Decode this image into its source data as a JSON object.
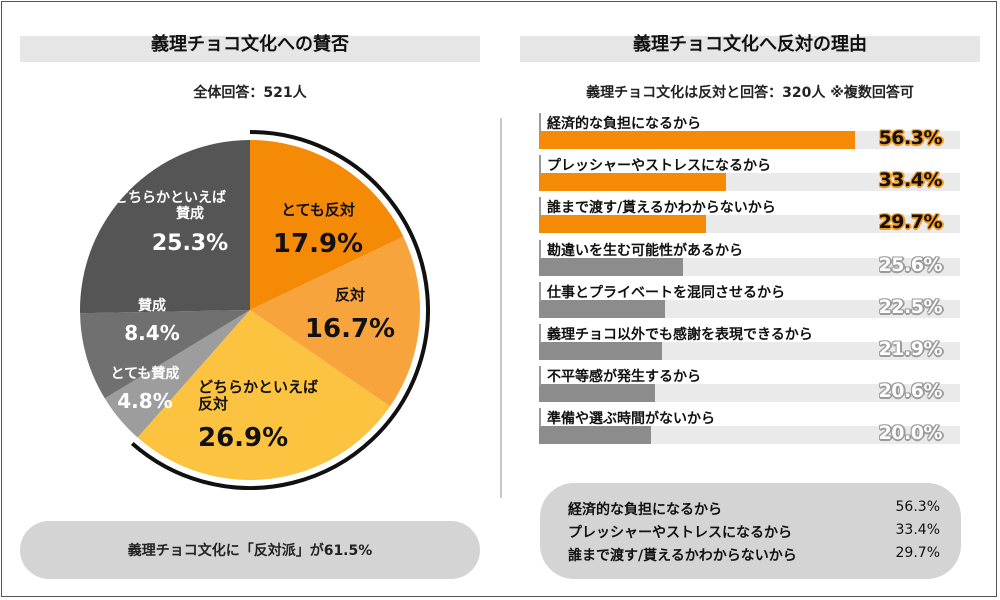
{
  "left_panel": {
    "title": "義理チョコ文化への賛否",
    "subtitle": "全体回答：521人",
    "summary": "義理チョコ文化に「反対派」が61.5%"
  },
  "right_panel": {
    "title": "義理チョコ文化へ反対の理由",
    "subtitle": "義理チョコ文化は反対と回答：320人 ※複数回答可",
    "summary": [
      {
        "label": "経済的な負担になるから",
        "value": "56.3%"
      },
      {
        "label": "プレッシャーやストレスになるから",
        "value": "33.4%"
      },
      {
        "label": "誰まで渡す/貰えるかわからないから",
        "value": "29.7%"
      }
    ]
  },
  "colors": {
    "orange_dark": "#f58a07",
    "orange_mid": "#f8a43c",
    "yellow": "#fbc33f",
    "gray_light": "#9d9d9d",
    "gray_mid": "#707070",
    "gray_dark": "#555555",
    "bar_gray": "#8c8c8c"
  },
  "chart_data": [
    {
      "type": "pie",
      "slices": [
        {
          "label_lines": [
            "とても反対"
          ],
          "pct_text": "17.9%",
          "value": 17.9,
          "color": "#f58a07"
        },
        {
          "label_lines": [
            "反対"
          ],
          "pct_text": "16.7%",
          "value": 16.7,
          "color": "#f8a43c"
        },
        {
          "label_lines": [
            "どちらかといえば",
            "反対"
          ],
          "pct_text": "26.9%",
          "value": 26.9,
          "color": "#fbc33f"
        },
        {
          "label_lines": [
            "とても賛成"
          ],
          "pct_text": "4.8%",
          "value": 4.8,
          "color": "#9d9d9d"
        },
        {
          "label_lines": [
            "賛成"
          ],
          "pct_text": "8.4%",
          "value": 8.4,
          "color": "#707070"
        },
        {
          "label_lines": [
            "どちらかといえば",
            "賛成"
          ],
          "pct_text": "25.3%",
          "value": 25.3,
          "color": "#555555"
        }
      ],
      "highlight_arc": "反対"
    },
    {
      "type": "bar",
      "orientation": "horizontal",
      "categories": [
        "経済的な負担になるから",
        "プレッシャーやストレスになるから",
        "誰まで渡す/貰えるかわからないから",
        "勘違いを生む可能性があるから",
        "仕事とプライベートを混同させるから",
        "義理チョコ以外でも感謝を表現できるから",
        "不平等感が発生するから",
        "準備や選ぶ時間がないから"
      ],
      "values": [
        56.3,
        33.4,
        29.7,
        25.6,
        22.5,
        21.9,
        20.6,
        20.0
      ],
      "value_labels": [
        "56.3%",
        "33.4%",
        "29.7%",
        "25.6%",
        "22.5%",
        "21.9%",
        "20.6%",
        "20.0%"
      ],
      "highlight_top": 3,
      "xlim": [
        0,
        75
      ]
    }
  ]
}
